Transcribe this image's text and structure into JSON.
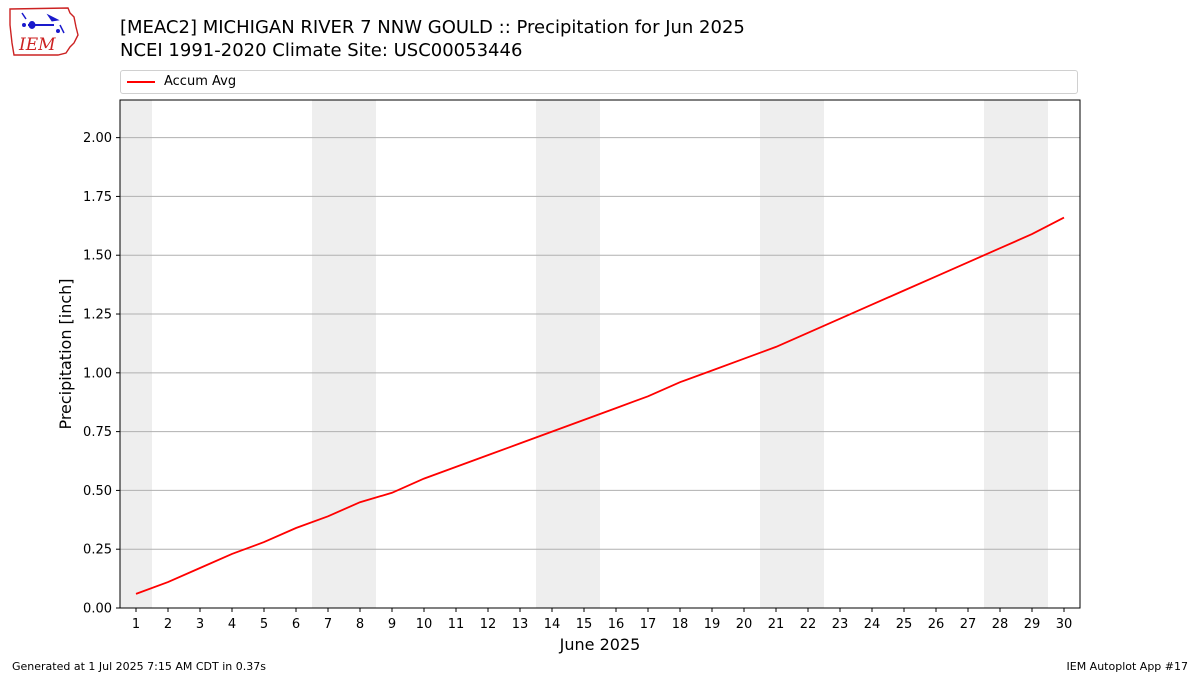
{
  "header": {
    "title_line1": "[MEAC2] MICHIGAN RIVER 7 NNW GOULD :: Precipitation for Jun 2025",
    "title_line2": "NCEI 1991-2020 Climate Site: USC00053446"
  },
  "logo": {
    "text": "IEM"
  },
  "footer": {
    "generated": "Generated at 1 Jul 2025 7:15 AM CDT in 0.37s",
    "app": "IEM Autoplot App #17"
  },
  "colors": {
    "line": "#ff0000",
    "weekend_band": "#eeeeee",
    "grid": "#b0b0b0",
    "logo_red": "#cc2222",
    "logo_blue": "#1a1acc"
  },
  "chart_data": {
    "type": "line",
    "xlabel": "June 2025",
    "ylabel": "Precipitation [inch]",
    "xlim": [
      0.5,
      30.5
    ],
    "ylim": [
      0,
      2.16
    ],
    "x": [
      1,
      2,
      3,
      4,
      5,
      6,
      7,
      8,
      9,
      10,
      11,
      12,
      13,
      14,
      15,
      16,
      17,
      18,
      19,
      20,
      21,
      22,
      23,
      24,
      25,
      26,
      27,
      28,
      29,
      30
    ],
    "xticks": [
      "1",
      "2",
      "3",
      "4",
      "5",
      "6",
      "7",
      "8",
      "9",
      "10",
      "11",
      "12",
      "13",
      "14",
      "15",
      "16",
      "17",
      "18",
      "19",
      "20",
      "21",
      "22",
      "23",
      "24",
      "25",
      "26",
      "27",
      "28",
      "29",
      "30"
    ],
    "yticks": [
      "0.00",
      "0.25",
      "0.50",
      "0.75",
      "1.00",
      "1.25",
      "1.50",
      "1.75",
      "2.00"
    ],
    "grid": "horizontal",
    "legend": "top",
    "weekend_bands": [
      [
        0.5,
        1.5
      ],
      [
        6.5,
        8.5
      ],
      [
        13.5,
        15.5
      ],
      [
        20.5,
        22.5
      ],
      [
        27.5,
        29.5
      ]
    ],
    "series": [
      {
        "name": "Accum Avg",
        "color": "#ff0000",
        "values": [
          0.06,
          0.11,
          0.17,
          0.23,
          0.28,
          0.34,
          0.39,
          0.45,
          0.49,
          0.55,
          0.6,
          0.65,
          0.7,
          0.75,
          0.8,
          0.85,
          0.9,
          0.96,
          1.01,
          1.06,
          1.11,
          1.17,
          1.23,
          1.29,
          1.35,
          1.41,
          1.47,
          1.53,
          1.59,
          1.66
        ]
      }
    ]
  }
}
